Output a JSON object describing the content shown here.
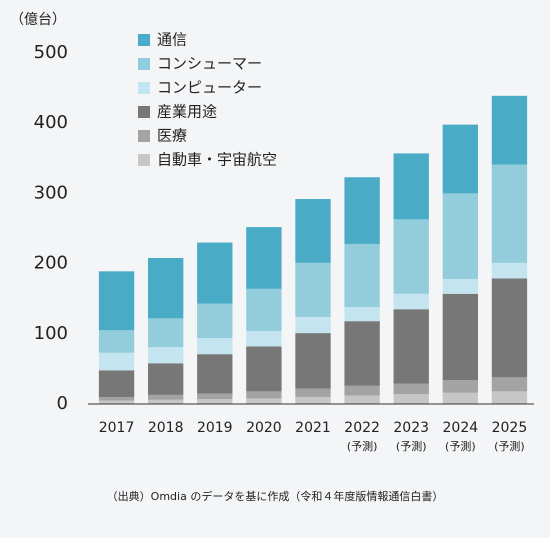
{
  "chart_data": {
    "type": "bar",
    "stacked": true,
    "y_axis_label": "（億台）",
    "source": "（出典）Omdia のデータを基に作成（令和４年度版情報通信白書）",
    "categories": [
      "2017",
      "2018",
      "2019",
      "2020",
      "2021",
      "2022",
      "2023",
      "2024",
      "2025"
    ],
    "category_notes": [
      null,
      null,
      null,
      null,
      null,
      "(予測)",
      "(予測)",
      "(予測)",
      "(予測)"
    ],
    "series": [
      {
        "name": "自動車・宇宙航空",
        "color": "#c6c6c6",
        "values": [
          5,
          6,
          7,
          8,
          10,
          12,
          14,
          16,
          18
        ]
      },
      {
        "name": "医療",
        "color": "#a3a3a3",
        "values": [
          5,
          7,
          8,
          10,
          12,
          14,
          15,
          18,
          20
        ]
      },
      {
        "name": "産業用途",
        "color": "#777777",
        "values": [
          38,
          45,
          56,
          64,
          79,
          92,
          106,
          123,
          141
        ]
      },
      {
        "name": "コンピューター",
        "color": "#c4e5ef",
        "values": [
          25,
          23,
          23,
          22,
          23,
          20,
          22,
          21,
          22
        ]
      },
      {
        "name": "コンシューマー",
        "color": "#93cddc",
        "values": [
          32,
          41,
          49,
          60,
          77,
          90,
          106,
          122,
          140
        ]
      },
      {
        "name": "通信",
        "color": "#4aabc6",
        "values": [
          84,
          86,
          87,
          88,
          91,
          95,
          94,
          98,
          98
        ]
      }
    ],
    "ylim": [
      0,
      500
    ],
    "yticks": [
      0,
      100,
      200,
      300,
      400,
      500
    ]
  }
}
